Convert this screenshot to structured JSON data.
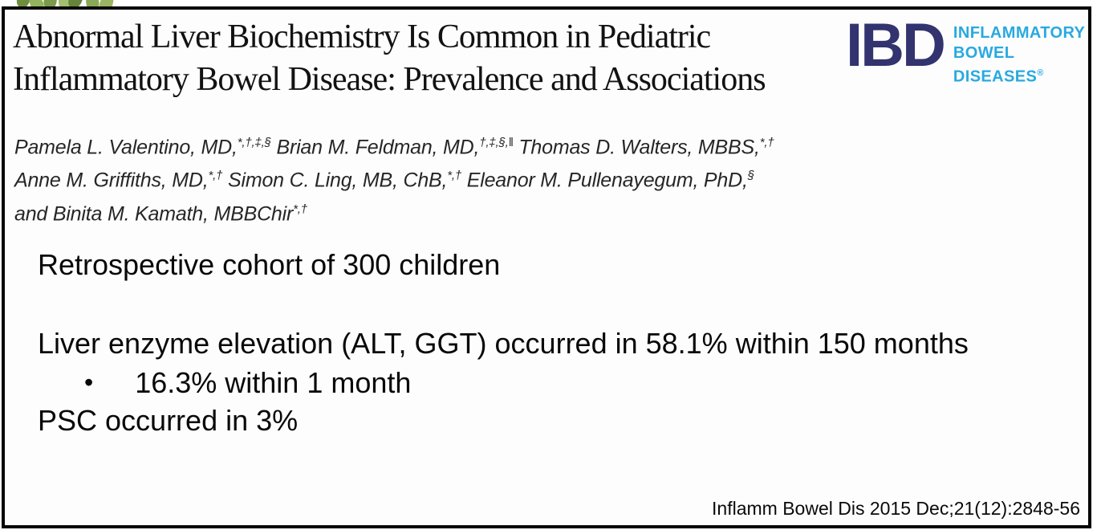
{
  "slide": {
    "title": {
      "line1": "Abnormal Liver Biochemistry Is Common in Pediatric",
      "line2": "Inflammatory Bowel Disease: Prevalence and Associations"
    },
    "authors": {
      "lines": [
        [
          {
            "text": "Pamela L. Valentino, MD,"
          },
          {
            "sup": "*,†,‡,§"
          },
          {
            "text": " Brian M. Feldman, MD,"
          },
          {
            "sup": "†,‡,§,‖"
          },
          {
            "text": " Thomas D. Walters, MBBS,"
          },
          {
            "sup": "*,†"
          }
        ],
        [
          {
            "text": "Anne M. Griffiths, MD,"
          },
          {
            "sup": "*,†"
          },
          {
            "text": " Simon C. Ling, MB, ChB,"
          },
          {
            "sup": "*,†"
          },
          {
            "text": " Eleanor M. Pullenayegum, PhD,"
          },
          {
            "sup": "§"
          }
        ],
        [
          {
            "text": "and Binita M. Kamath, MBBChir"
          },
          {
            "sup": "*,†"
          }
        ]
      ]
    },
    "logo": {
      "acronym": "IBD",
      "words": [
        "INFLAMMATORY",
        "BOWEL",
        "DISEASES"
      ],
      "registered": "®",
      "navy_color": "#32336f",
      "cyan_color": "#29a9e0"
    },
    "body": {
      "line1": "Retrospective cohort of 300 children",
      "line2": "Liver enzyme elevation (ALT, GGT) occurred in 58.1% within 150 months",
      "bullet_char": "•",
      "bullet_text": "16.3% within 1 month",
      "line3": "PSC occurred in 3%"
    },
    "footer": {
      "citation": "Inflamm Bowel Dis 2015 Dec;21(12):2848-56"
    }
  }
}
